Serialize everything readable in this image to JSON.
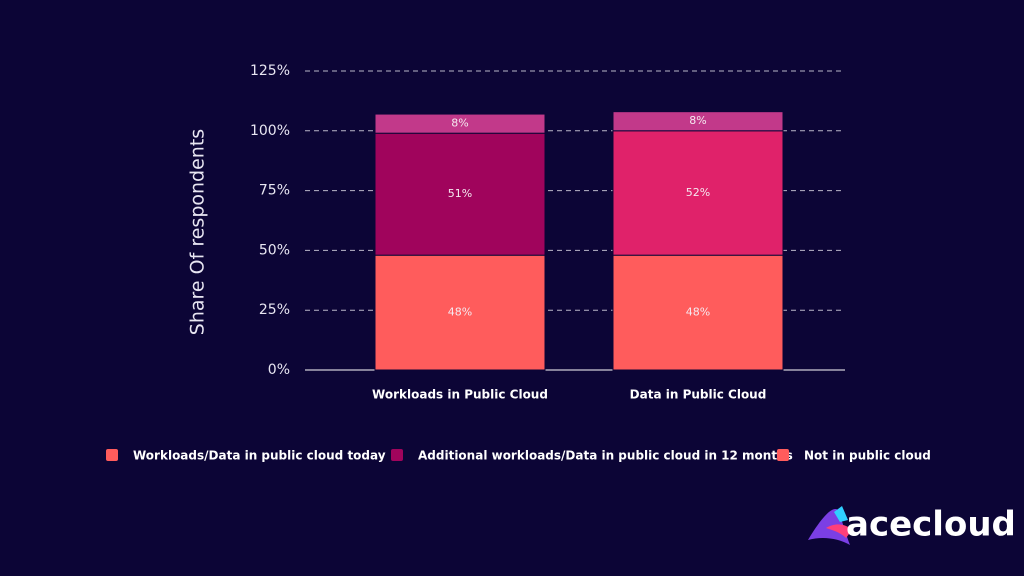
{
  "chart_data": {
    "type": "stacked-bar",
    "y_label": "Share Of respondents",
    "categories": [
      "Workloads in Public Cloud",
      "Data in Public Cloud"
    ],
    "series": [
      {
        "name": "Workloads/Data in public cloud today",
        "color": "#ff5c5c",
        "bar_colors": [
          "#ff5c5c",
          "#ff5c5c"
        ],
        "values": [
          48,
          48
        ],
        "value_labels": [
          "48%",
          "48%"
        ]
      },
      {
        "name": "Additional workloads/Data in public cloud in 12 months",
        "color": "#a0045c",
        "bar_colors": [
          "#a0045c",
          "#e0226a"
        ],
        "values": [
          51,
          52
        ],
        "value_labels": [
          "51%",
          "52%"
        ]
      },
      {
        "name": "Not in public cloud",
        "color": "#ff5c5c",
        "bar_colors": [
          "#c2398a",
          "#c2398a"
        ],
        "values": [
          8,
          8
        ],
        "value_labels": [
          "8%",
          "8%"
        ]
      }
    ],
    "ylim": [
      0,
      125
    ],
    "yticks": [
      {
        "value": 0,
        "label": "0%"
      },
      {
        "value": 25,
        "label": "25%"
      },
      {
        "value": 50,
        "label": "50%"
      },
      {
        "value": 75,
        "label": "75%"
      },
      {
        "value": 100,
        "label": "100%"
      },
      {
        "value": 125,
        "label": "125%"
      }
    ],
    "grid": true
  },
  "brand": "acecloud"
}
